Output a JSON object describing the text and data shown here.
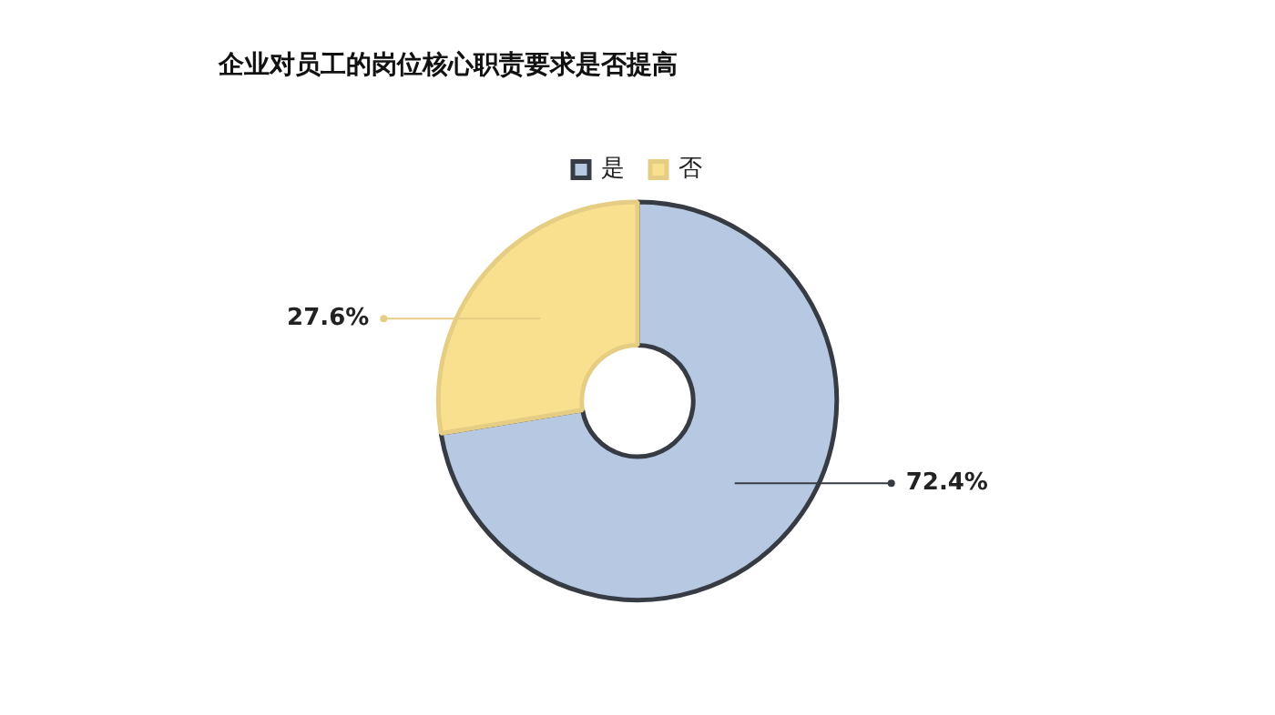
{
  "chart_data": {
    "type": "donut",
    "title": "企业对员工的岗位核心职责要求是否提高",
    "categories": [
      "是",
      "否"
    ],
    "values": [
      72.4,
      27.6
    ],
    "colors": [
      "#b7c9e2",
      "#f9e08e"
    ],
    "value_labels": [
      "72.4%",
      "27.6%"
    ],
    "legend": "top"
  }
}
